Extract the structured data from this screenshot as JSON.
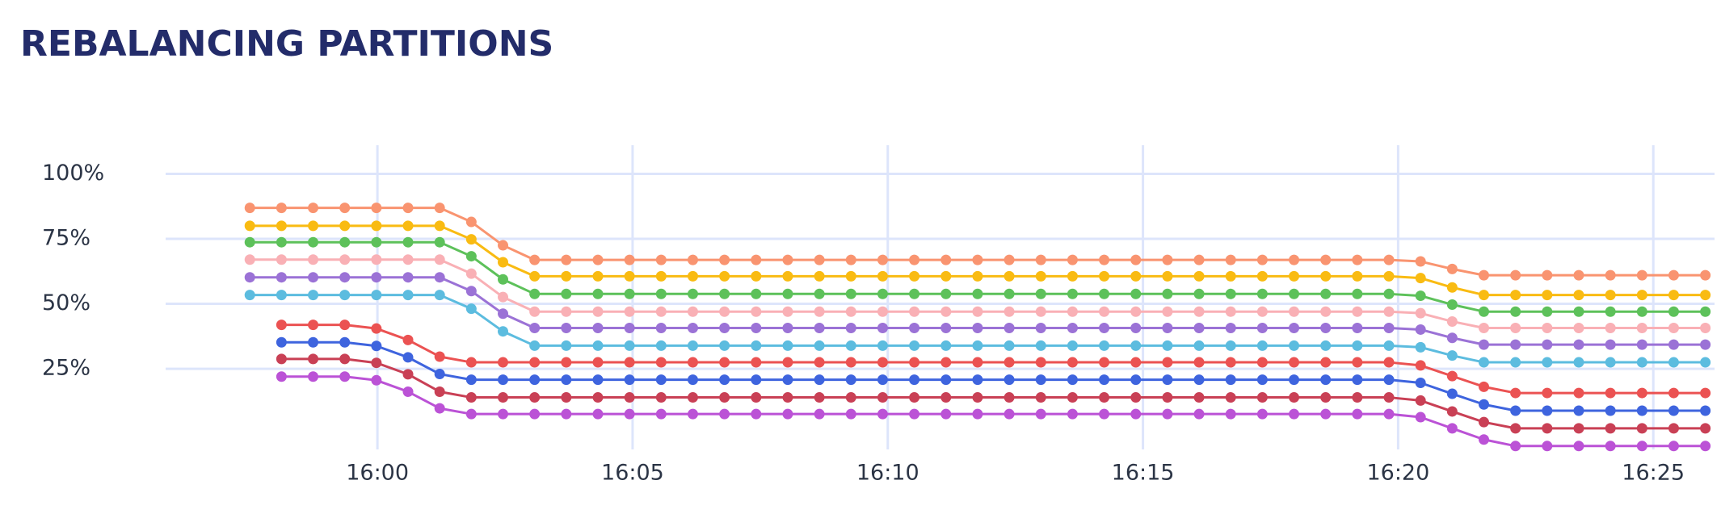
{
  "chart_data": {
    "type": "line",
    "title": "REBALANCING PARTITIONS",
    "x": [
      957.5,
      958.12,
      958.74,
      959.36,
      959.98,
      960.6,
      961.22,
      961.84,
      962.46,
      963.08,
      963.7,
      964.32,
      964.94,
      965.56,
      966.18,
      966.8,
      967.42,
      968.04,
      968.66,
      969.28,
      969.9,
      970.52,
      971.14,
      971.76,
      972.38,
      973,
      973.62,
      974.24,
      974.86,
      975.48,
      976.1,
      976.72,
      977.34,
      977.96,
      978.58,
      979.2,
      979.82,
      980.44,
      981.06,
      981.68,
      982.3,
      982.92,
      983.54,
      984.16,
      984.78,
      985.4,
      986.02
    ],
    "xlim": [
      955.85,
      986.2
    ],
    "xticks": [
      {
        "value": 960,
        "label": "16:00"
      },
      {
        "value": 965,
        "label": "16:05"
      },
      {
        "value": 970,
        "label": "16:10"
      },
      {
        "value": 975,
        "label": "16:15"
      },
      {
        "value": 980,
        "label": "16:20"
      },
      {
        "value": 985,
        "label": "16:25"
      }
    ],
    "ylim": [
      -6,
      111
    ],
    "yticks": [
      {
        "value": 100,
        "label": "100%"
      },
      {
        "value": 75,
        "label": "75%"
      },
      {
        "value": 50,
        "label": "50%"
      },
      {
        "value": 25,
        "label": "25%"
      }
    ],
    "grid": true,
    "series": [
      {
        "color": "#f99470",
        "values": [
          86.9,
          86.9,
          86.9,
          86.9,
          86.9,
          86.9,
          86.9,
          81.5,
          72.5,
          66.9,
          66.9,
          66.9,
          66.9,
          66.9,
          66.9,
          66.9,
          66.9,
          66.9,
          66.9,
          66.9,
          66.9,
          66.9,
          66.9,
          66.9,
          66.9,
          66.9,
          66.9,
          66.9,
          66.9,
          66.9,
          66.9,
          66.9,
          66.9,
          66.9,
          66.9,
          66.9,
          66.9,
          66.3,
          63.4,
          61,
          61,
          61,
          61,
          61,
          61,
          61,
          61
        ]
      },
      {
        "color": "#f9bb12",
        "values": [
          80,
          80,
          80,
          80,
          80,
          80,
          80,
          74.8,
          66,
          60.6,
          60.6,
          60.6,
          60.6,
          60.6,
          60.6,
          60.6,
          60.6,
          60.6,
          60.6,
          60.6,
          60.6,
          60.6,
          60.6,
          60.6,
          60.6,
          60.6,
          60.6,
          60.6,
          60.6,
          60.6,
          60.6,
          60.6,
          60.6,
          60.6,
          60.6,
          60.6,
          60.6,
          59.9,
          56.3,
          53.4,
          53.4,
          53.4,
          53.4,
          53.4,
          53.4,
          53.4,
          53.4
        ]
      },
      {
        "color": "#5dc15a",
        "values": [
          73.7,
          73.7,
          73.7,
          73.7,
          73.7,
          73.7,
          73.7,
          68.3,
          59.4,
          53.8,
          53.8,
          53.8,
          53.8,
          53.8,
          53.8,
          53.8,
          53.8,
          53.8,
          53.8,
          53.8,
          53.8,
          53.8,
          53.8,
          53.8,
          53.8,
          53.8,
          53.8,
          53.8,
          53.8,
          53.8,
          53.8,
          53.8,
          53.8,
          53.8,
          53.8,
          53.8,
          53.8,
          53.1,
          49.7,
          47,
          47,
          47,
          47,
          47,
          47,
          47,
          47
        ]
      },
      {
        "color": "#f9b0b5",
        "values": [
          67,
          67,
          67,
          67,
          67,
          67,
          67,
          61.6,
          52.6,
          47,
          47,
          47,
          47,
          47,
          47,
          47,
          47,
          47,
          47,
          47,
          47,
          47,
          47,
          47,
          47,
          47,
          47,
          47,
          47,
          47,
          47,
          47,
          47,
          47,
          47,
          47,
          47,
          46.4,
          43.2,
          40.7,
          40.7,
          40.7,
          40.7,
          40.7,
          40.7,
          40.7,
          40.7
        ]
      },
      {
        "color": "#9b72d6",
        "values": [
          60.2,
          60.2,
          60.2,
          60.2,
          60.2,
          60.2,
          60.2,
          54.9,
          46.2,
          40.7,
          40.7,
          40.7,
          40.7,
          40.7,
          40.7,
          40.7,
          40.7,
          40.7,
          40.7,
          40.7,
          40.7,
          40.7,
          40.7,
          40.7,
          40.7,
          40.7,
          40.7,
          40.7,
          40.7,
          40.7,
          40.7,
          40.7,
          40.7,
          40.7,
          40.7,
          40.7,
          40.7,
          40.1,
          36.9,
          34.3,
          34.3,
          34.3,
          34.3,
          34.3,
          34.3,
          34.3,
          34.3
        ]
      },
      {
        "color": "#5cbcdf",
        "values": [
          53.4,
          53.4,
          53.4,
          53.4,
          53.4,
          53.4,
          53.4,
          48.1,
          39.4,
          33.9,
          33.9,
          33.9,
          33.9,
          33.9,
          33.9,
          33.9,
          33.9,
          33.9,
          33.9,
          33.9,
          33.9,
          33.9,
          33.9,
          33.9,
          33.9,
          33.9,
          33.9,
          33.9,
          33.9,
          33.9,
          33.9,
          33.9,
          33.9,
          33.9,
          33.9,
          33.9,
          33.9,
          33.3,
          30.1,
          27.5,
          27.5,
          27.5,
          27.5,
          27.5,
          27.5,
          27.5,
          27.5
        ]
      },
      {
        "color": "#eb5252",
        "values": [
          null,
          41.9,
          41.9,
          41.9,
          40.5,
          36.1,
          29.7,
          27.5,
          27.5,
          27.5,
          27.5,
          27.5,
          27.5,
          27.5,
          27.5,
          27.5,
          27.5,
          27.5,
          27.5,
          27.5,
          27.5,
          27.5,
          27.5,
          27.5,
          27.5,
          27.5,
          27.5,
          27.5,
          27.5,
          27.5,
          27.5,
          27.5,
          27.5,
          27.5,
          27.5,
          27.5,
          27.5,
          26.3,
          22.2,
          18.1,
          15.7,
          15.7,
          15.7,
          15.7,
          15.7,
          15.7,
          15.7
        ]
      },
      {
        "color": "#3e64de",
        "values": [
          null,
          35.2,
          35.2,
          35.2,
          33.8,
          29.4,
          23,
          20.8,
          20.8,
          20.8,
          20.8,
          20.8,
          20.8,
          20.8,
          20.8,
          20.8,
          20.8,
          20.8,
          20.8,
          20.8,
          20.8,
          20.8,
          20.8,
          20.8,
          20.8,
          20.8,
          20.8,
          20.8,
          20.8,
          20.8,
          20.8,
          20.8,
          20.8,
          20.8,
          20.8,
          20.8,
          20.8,
          19.6,
          15.4,
          11.3,
          8.9,
          8.9,
          8.9,
          8.9,
          8.9,
          8.9,
          8.9
        ]
      },
      {
        "color": "#c94055",
        "values": [
          null,
          28.8,
          28.8,
          28.8,
          27.3,
          22.9,
          16.2,
          14,
          14,
          14,
          14,
          14,
          14,
          14,
          14,
          14,
          14,
          14,
          14,
          14,
          14,
          14,
          14,
          14,
          14,
          14,
          14,
          14,
          14,
          14,
          14,
          14,
          14,
          14,
          14,
          14,
          14,
          12.8,
          8.6,
          4.5,
          2.1,
          2.1,
          2.1,
          2.1,
          2.1,
          2.1,
          2.1
        ]
      },
      {
        "color": "#bb52d6",
        "values": [
          null,
          22,
          22,
          22,
          20.6,
          16.2,
          9.8,
          7.6,
          7.6,
          7.6,
          7.6,
          7.6,
          7.6,
          7.6,
          7.6,
          7.6,
          7.6,
          7.6,
          7.6,
          7.6,
          7.6,
          7.6,
          7.6,
          7.6,
          7.6,
          7.6,
          7.6,
          7.6,
          7.6,
          7.6,
          7.6,
          7.6,
          7.6,
          7.6,
          7.6,
          7.6,
          7.6,
          6.4,
          2.1,
          -2.2,
          -4.7,
          -4.7,
          -4.7,
          -4.7,
          -4.7,
          -4.7,
          -4.7
        ]
      }
    ]
  }
}
